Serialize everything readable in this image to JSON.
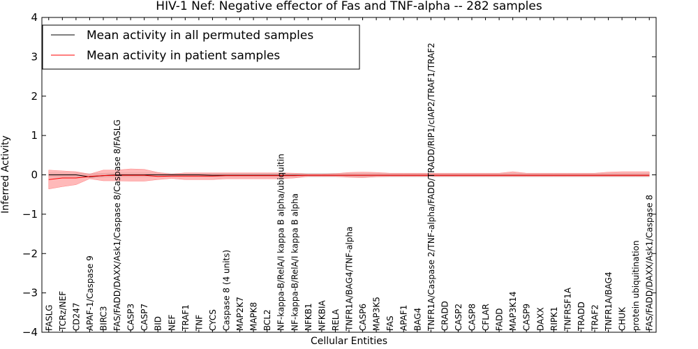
{
  "chart_data": {
    "type": "line",
    "title": "HIV-1 Nef: Negative effector of Fas and TNF-alpha -- 282 samples",
    "xlabel": "Cellular Entities",
    "ylabel": "Inferred Activity",
    "ylim": [
      -4,
      4
    ],
    "yticks": [
      4,
      3,
      2,
      1,
      0,
      -1,
      -2,
      -3,
      -4
    ],
    "ytick_labels": [
      "4",
      "3",
      "2",
      "1",
      "0",
      "−1",
      "−2",
      "−3",
      "−4"
    ],
    "legend_position": "upper-left",
    "categories": [
      "FASLG",
      "TCRz/NEF",
      "CD247",
      "APAF-1/Caspase 9",
      "BIRC3",
      "FAS/FADD/DAXX/Ask1/Caspase 8/Caspase 8/FASLG",
      "CASP3",
      "CASP7",
      "BID",
      "NEF",
      "TRAF1",
      "TNF",
      "CYCS",
      "Caspase 8 (4 units)",
      "MAP2K7",
      "MAPK8",
      "BCL2",
      "NF-kappa-B/RelA/I kappa B alpha/ubiquitin",
      "NF-kappa-B/RelA/I kappa B alpha",
      "NFKB1",
      "NFKBIA",
      "RELA",
      "TNFR1A/BAG4/TNF-alpha",
      "CASP6",
      "MAP3K5",
      "FAS",
      "APAF1",
      "BAG4",
      "TNFR1A/Caspase 2/TNF-alpha/FADD/TRADD/RIP1/cIAP2/TRAF1/TRAF2",
      "CRADD",
      "CASP2",
      "CASP8",
      "CFLAR",
      "FADD",
      "MAP3K14",
      "CASP9",
      "DAXX",
      "RIPK1",
      "TNFRSF1A",
      "TRADD",
      "TRAF2",
      "TNFR1A/BAG4",
      "CHUK",
      "protein ubiquitination",
      "FAS/FADD/DAXX/Ask1/Caspase 8"
    ],
    "series": [
      {
        "name": "Mean activity in all permuted samples",
        "color": "#000000",
        "values": [
          0.0,
          0.0,
          0.0,
          -0.05,
          -0.02,
          0.0,
          0.0,
          0.0,
          0.0,
          0.0,
          0.0,
          0.0,
          -0.01,
          -0.01,
          -0.01,
          -0.01,
          -0.01,
          -0.01,
          -0.01,
          -0.01,
          -0.01,
          -0.01,
          -0.01,
          -0.01,
          -0.01,
          -0.01,
          -0.01,
          -0.01,
          -0.01,
          -0.01,
          -0.01,
          -0.01,
          -0.01,
          -0.01,
          -0.01,
          -0.01,
          -0.01,
          -0.01,
          -0.01,
          -0.01,
          -0.01,
          -0.01,
          -0.01,
          -0.01,
          -0.01
        ],
        "band_low": [
          -0.06,
          -0.06,
          -0.06,
          -0.08,
          -0.06,
          -0.05,
          -0.05,
          -0.05,
          -0.05,
          -0.05,
          -0.05,
          -0.05,
          -0.05,
          -0.05,
          -0.05,
          -0.05,
          -0.05,
          -0.05,
          -0.05,
          -0.05,
          -0.05,
          -0.05,
          -0.05,
          -0.06,
          -0.05,
          -0.05,
          -0.05,
          -0.05,
          -0.05,
          -0.05,
          -0.05,
          -0.05,
          -0.05,
          -0.05,
          -0.05,
          -0.05,
          -0.05,
          -0.05,
          -0.05,
          -0.05,
          -0.05,
          -0.05,
          -0.05,
          -0.05,
          -0.05
        ],
        "band_high": [
          0.05,
          0.05,
          0.05,
          0.03,
          0.04,
          0.05,
          0.05,
          0.05,
          0.05,
          0.04,
          0.04,
          0.04,
          0.04,
          0.04,
          0.04,
          0.04,
          0.04,
          0.04,
          0.04,
          0.04,
          0.04,
          0.04,
          0.04,
          0.04,
          0.04,
          0.04,
          0.04,
          0.04,
          0.04,
          0.04,
          0.04,
          0.04,
          0.04,
          0.04,
          0.04,
          0.04,
          0.04,
          0.04,
          0.04,
          0.04,
          0.04,
          0.04,
          0.04,
          0.04,
          0.04
        ],
        "band_color": "#cccccc"
      },
      {
        "name": "Mean activity in patient samples",
        "color": "#ff0000",
        "values": [
          -0.12,
          -0.08,
          -0.08,
          -0.04,
          -0.02,
          -0.01,
          -0.01,
          -0.01,
          -0.04,
          -0.03,
          -0.03,
          -0.03,
          -0.03,
          -0.02,
          -0.02,
          -0.02,
          -0.02,
          -0.02,
          -0.02,
          -0.01,
          -0.01,
          -0.01,
          -0.01,
          -0.01,
          -0.01,
          -0.01,
          -0.01,
          -0.01,
          -0.01,
          -0.01,
          -0.01,
          -0.01,
          -0.01,
          -0.01,
          -0.01,
          -0.01,
          -0.01,
          -0.01,
          -0.01,
          -0.01,
          -0.01,
          -0.01,
          -0.01,
          -0.01,
          -0.01
        ],
        "band_low": [
          -0.36,
          -0.3,
          -0.25,
          -0.1,
          -0.15,
          -0.15,
          -0.16,
          -0.16,
          -0.12,
          -0.09,
          -0.12,
          -0.12,
          -0.12,
          -0.1,
          -0.1,
          -0.1,
          -0.1,
          -0.1,
          -0.08,
          -0.04,
          -0.04,
          -0.04,
          -0.06,
          -0.07,
          -0.05,
          -0.04,
          -0.04,
          -0.04,
          -0.04,
          -0.04,
          -0.04,
          -0.04,
          -0.04,
          -0.04,
          -0.04,
          -0.04,
          -0.04,
          -0.04,
          -0.04,
          -0.04,
          -0.04,
          -0.04,
          -0.04,
          -0.04,
          -0.04
        ],
        "band_high": [
          0.12,
          0.1,
          0.08,
          0.02,
          0.12,
          0.12,
          0.15,
          0.14,
          0.06,
          0.02,
          0.05,
          0.05,
          0.05,
          0.05,
          0.05,
          0.05,
          0.05,
          0.05,
          0.04,
          0.02,
          0.02,
          0.03,
          0.06,
          0.07,
          0.06,
          0.04,
          0.04,
          0.04,
          0.04,
          0.04,
          0.04,
          0.04,
          0.04,
          0.04,
          0.08,
          0.04,
          0.04,
          0.04,
          0.04,
          0.04,
          0.04,
          0.07,
          0.08,
          0.08,
          0.08
        ],
        "band_color": "#ff8080"
      }
    ]
  }
}
